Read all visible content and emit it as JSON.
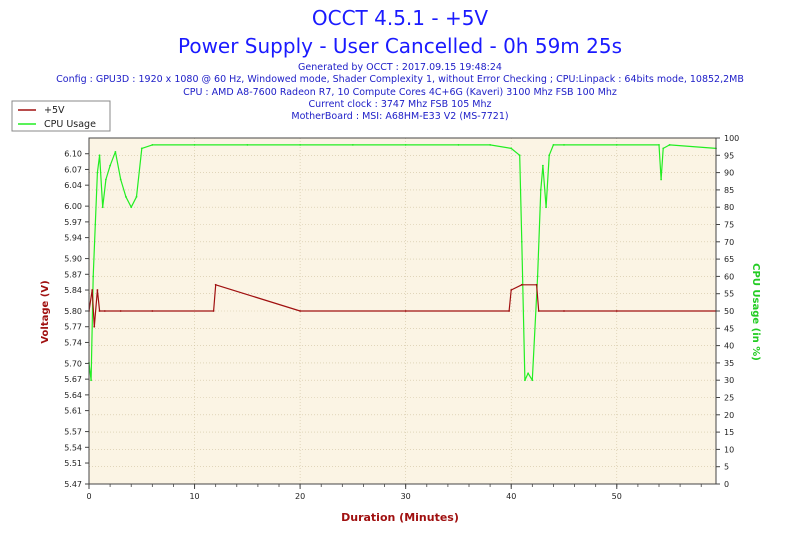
{
  "colors": {
    "voltage": "#a01010",
    "cpu": "#22ee22",
    "plot_bg": "#fbf4e4",
    "grid": "#cfc2a0",
    "title": "#1a1aff"
  },
  "chart_data": {
    "type": "line",
    "title": "OCCT 4.5.1 - +5V",
    "subtitle": "Power Supply - User Cancelled - 0h 59m 25s",
    "info_lines": [
      "Generated by OCCT : 2017.09.15 19:48:24",
      "Config : GPU3D : 1920 x 1080 @ 60 Hz, Windowed mode, Shader Complexity 1, without Error Checking ; CPU:Linpack : 64bits mode, 10852,2MB",
      "CPU : AMD A8-7600 Radeon R7, 10 Compute Cores 4C+6G (Kaveri) 3100 Mhz FSB 100 Mhz",
      "Current clock : 3747 Mhz FSB 105 Mhz",
      "MotherBoard : MSI: A68HM-E33 V2 (MS-7721)"
    ],
    "xlabel": "Duration (Minutes)",
    "ylabel_left": "Voltage (V)",
    "ylabel_right": "CPU Usage (in %)",
    "xlim": [
      0,
      59.4
    ],
    "ylim_left": [
      5.47,
      6.13
    ],
    "ylim_right": [
      0,
      100
    ],
    "x_ticks": [
      "0",
      "10",
      "20",
      "30",
      "40",
      "50"
    ],
    "y_left_ticks": [
      "5.47",
      "5.51",
      "5.54",
      "5.57",
      "5.61",
      "5.64",
      "5.67",
      "5.70",
      "5.74",
      "5.77",
      "5.80",
      "5.84",
      "5.87",
      "5.90",
      "5.94",
      "5.97",
      "6.00",
      "6.04",
      "6.07",
      "6.10"
    ],
    "y_right_ticks": [
      "0",
      "5",
      "10",
      "15",
      "20",
      "25",
      "30",
      "35",
      "40",
      "45",
      "50",
      "55",
      "60",
      "65",
      "70",
      "75",
      "80",
      "85",
      "90",
      "95",
      "100"
    ],
    "grid": true,
    "legend_position": "top-left",
    "series": [
      {
        "name": "+5V",
        "axis": "left",
        "x": [
          0,
          0.3,
          0.5,
          0.8,
          1.0,
          1.5,
          3.0,
          6.0,
          11.8,
          12.0,
          20.0,
          30.0,
          39.8,
          40.0,
          41.0,
          42.4,
          42.6,
          45.0,
          50.0,
          59.4
        ],
        "y": [
          5.8,
          5.84,
          5.77,
          5.84,
          5.8,
          5.8,
          5.8,
          5.8,
          5.8,
          5.85,
          5.8,
          5.8,
          5.8,
          5.84,
          5.85,
          5.85,
          5.8,
          5.8,
          5.8,
          5.8
        ]
      },
      {
        "name": "CPU Usage",
        "axis": "right",
        "x": [
          0,
          0.2,
          0.4,
          0.6,
          0.8,
          1.0,
          1.3,
          1.6,
          2.0,
          2.5,
          3.0,
          3.5,
          4.0,
          4.5,
          5.0,
          6.0,
          10.0,
          15.0,
          20.0,
          25.0,
          30.0,
          35.0,
          38.0,
          40.0,
          40.8,
          41.0,
          41.3,
          41.6,
          42.0,
          42.5,
          42.8,
          43.0,
          43.3,
          43.6,
          44.0,
          45.0,
          50.0,
          54.0,
          54.2,
          54.4,
          55.0,
          59.4
        ],
        "y": [
          35,
          30,
          60,
          75,
          90,
          95,
          80,
          88,
          92,
          96,
          88,
          83,
          80,
          83,
          97,
          98,
          98,
          98,
          98,
          98,
          98,
          98,
          98,
          97,
          95,
          70,
          30,
          32,
          30,
          60,
          85,
          92,
          80,
          95,
          98,
          98,
          98,
          98,
          88,
          97,
          98,
          97
        ]
      }
    ]
  }
}
